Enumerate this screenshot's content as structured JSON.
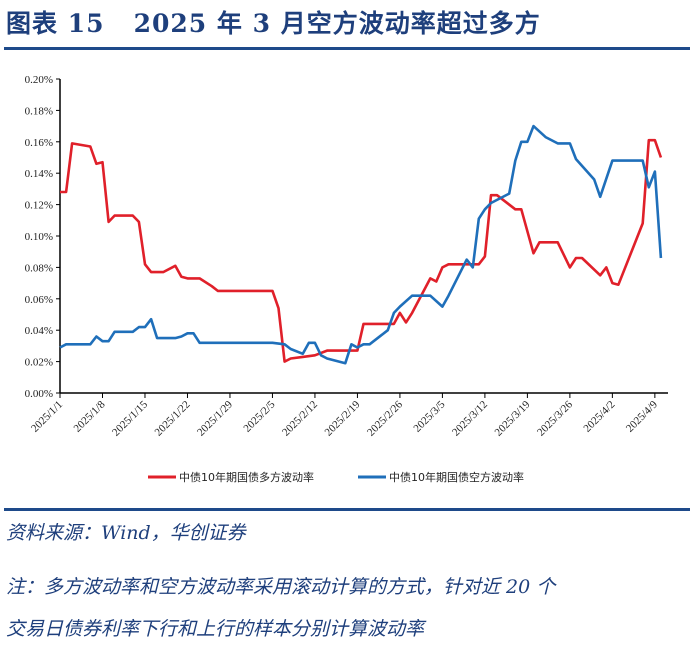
{
  "header": {
    "title": "图表 15   2025 年 3 月空方波动率超过多方"
  },
  "footer": {
    "source": "资料来源：Wind，华创证券",
    "note_line1": "注：多方波动率和空方波动率采用滚动计算的方式，针对近 20 个",
    "note_line2": "交易日债券利率下行和上行的样本分别计算波动率"
  },
  "chart_data": {
    "type": "line",
    "title": "",
    "xlabel": "",
    "ylabel": "",
    "ylim": [
      0,
      0.2
    ],
    "yticks": [
      "0.00%",
      "0.02%",
      "0.04%",
      "0.06%",
      "0.08%",
      "0.10%",
      "0.12%",
      "0.14%",
      "0.16%",
      "0.18%",
      "0.20%"
    ],
    "xticks": [
      "2025/1/1",
      "2025/1/8",
      "2025/1/15",
      "2025/1/22",
      "2025/1/29",
      "2025/2/5",
      "2025/2/12",
      "2025/2/19",
      "2025/2/26",
      "2025/3/5",
      "2025/3/12",
      "2025/3/19",
      "2025/3/26",
      "2025/4/2",
      "2025/4/9"
    ],
    "xlim": [
      "2025-01-01",
      "2025-04-11"
    ],
    "grid": false,
    "legend_position": "bottom",
    "unit": "%",
    "series": [
      {
        "name": "中债10年期国债多方波动率",
        "color": "#e0202a",
        "points": [
          [
            "2025-01-01",
            0.128
          ],
          [
            "2025-01-02",
            0.128
          ],
          [
            "2025-01-03",
            0.159
          ],
          [
            "2025-01-06",
            0.157
          ],
          [
            "2025-01-07",
            0.146
          ],
          [
            "2025-01-08",
            0.147
          ],
          [
            "2025-01-09",
            0.109
          ],
          [
            "2025-01-10",
            0.113
          ],
          [
            "2025-01-13",
            0.113
          ],
          [
            "2025-01-14",
            0.109
          ],
          [
            "2025-01-15",
            0.082
          ],
          [
            "2025-01-16",
            0.077
          ],
          [
            "2025-01-18",
            0.077
          ],
          [
            "2025-01-20",
            0.081
          ],
          [
            "2025-01-21",
            0.074
          ],
          [
            "2025-01-22",
            0.073
          ],
          [
            "2025-01-24",
            0.073
          ],
          [
            "2025-01-26",
            0.068
          ],
          [
            "2025-01-27",
            0.065
          ],
          [
            "2025-02-05",
            0.065
          ],
          [
            "2025-02-06",
            0.054
          ],
          [
            "2025-02-07",
            0.02
          ],
          [
            "2025-02-08",
            0.022
          ],
          [
            "2025-02-10",
            0.023
          ],
          [
            "2025-02-12",
            0.024
          ],
          [
            "2025-02-14",
            0.027
          ],
          [
            "2025-02-19",
            0.027
          ],
          [
            "2025-02-20",
            0.044
          ],
          [
            "2025-02-25",
            0.044
          ],
          [
            "2025-02-26",
            0.051
          ],
          [
            "2025-02-27",
            0.045
          ],
          [
            "2025-02-28",
            0.051
          ],
          [
            "2025-03-03",
            0.073
          ],
          [
            "2025-03-04",
            0.071
          ],
          [
            "2025-03-05",
            0.08
          ],
          [
            "2025-03-06",
            0.082
          ],
          [
            "2025-03-11",
            0.082
          ],
          [
            "2025-03-12",
            0.087
          ],
          [
            "2025-03-13",
            0.126
          ],
          [
            "2025-03-14",
            0.126
          ],
          [
            "2025-03-17",
            0.117
          ],
          [
            "2025-03-18",
            0.117
          ],
          [
            "2025-03-20",
            0.089
          ],
          [
            "2025-03-21",
            0.096
          ],
          [
            "2025-03-24",
            0.096
          ],
          [
            "2025-03-26",
            0.08
          ],
          [
            "2025-03-27",
            0.086
          ],
          [
            "2025-03-28",
            0.086
          ],
          [
            "2025-03-31",
            0.075
          ],
          [
            "2025-04-01",
            0.08
          ],
          [
            "2025-04-02",
            0.07
          ],
          [
            "2025-04-03",
            0.069
          ],
          [
            "2025-04-07",
            0.108
          ],
          [
            "2025-04-08",
            0.161
          ],
          [
            "2025-04-09",
            0.161
          ],
          [
            "2025-04-10",
            0.15
          ]
        ]
      },
      {
        "name": "中债10年期国债空方波动率",
        "color": "#1f6fba",
        "points": [
          [
            "2025-01-01",
            0.029
          ],
          [
            "2025-01-02",
            0.031
          ],
          [
            "2025-01-06",
            0.031
          ],
          [
            "2025-01-07",
            0.036
          ],
          [
            "2025-01-08",
            0.033
          ],
          [
            "2025-01-09",
            0.033
          ],
          [
            "2025-01-10",
            0.039
          ],
          [
            "2025-01-13",
            0.039
          ],
          [
            "2025-01-14",
            0.042
          ],
          [
            "2025-01-15",
            0.042
          ],
          [
            "2025-01-16",
            0.047
          ],
          [
            "2025-01-17",
            0.035
          ],
          [
            "2025-01-20",
            0.035
          ],
          [
            "2025-01-21",
            0.036
          ],
          [
            "2025-01-22",
            0.038
          ],
          [
            "2025-01-23",
            0.038
          ],
          [
            "2025-01-24",
            0.032
          ],
          [
            "2025-02-05",
            0.032
          ],
          [
            "2025-02-07",
            0.031
          ],
          [
            "2025-02-08",
            0.028
          ],
          [
            "2025-02-10",
            0.025
          ],
          [
            "2025-02-11",
            0.032
          ],
          [
            "2025-02-12",
            0.032
          ],
          [
            "2025-02-13",
            0.024
          ],
          [
            "2025-02-14",
            0.022
          ],
          [
            "2025-02-17",
            0.019
          ],
          [
            "2025-02-18",
            0.031
          ],
          [
            "2025-02-19",
            0.029
          ],
          [
            "2025-02-20",
            0.031
          ],
          [
            "2025-02-21",
            0.031
          ],
          [
            "2025-02-24",
            0.04
          ],
          [
            "2025-02-25",
            0.051
          ],
          [
            "2025-02-26",
            0.055
          ],
          [
            "2025-02-28",
            0.062
          ],
          [
            "2025-03-03",
            0.062
          ],
          [
            "2025-03-05",
            0.055
          ],
          [
            "2025-03-06",
            0.062
          ],
          [
            "2025-03-09",
            0.085
          ],
          [
            "2025-03-10",
            0.08
          ],
          [
            "2025-03-11",
            0.111
          ],
          [
            "2025-03-12",
            0.117
          ],
          [
            "2025-03-13",
            0.121
          ],
          [
            "2025-03-16",
            0.127
          ],
          [
            "2025-03-17",
            0.148
          ],
          [
            "2025-03-18",
            0.16
          ],
          [
            "2025-03-19",
            0.16
          ],
          [
            "2025-03-20",
            0.17
          ],
          [
            "2025-03-22",
            0.163
          ],
          [
            "2025-03-24",
            0.159
          ],
          [
            "2025-03-26",
            0.159
          ],
          [
            "2025-03-27",
            0.149
          ],
          [
            "2025-03-30",
            0.136
          ],
          [
            "2025-03-31",
            0.125
          ],
          [
            "2025-04-02",
            0.148
          ],
          [
            "2025-04-07",
            0.148
          ],
          [
            "2025-04-08",
            0.131
          ],
          [
            "2025-04-09",
            0.141
          ],
          [
            "2025-04-10",
            0.086
          ]
        ]
      }
    ]
  }
}
